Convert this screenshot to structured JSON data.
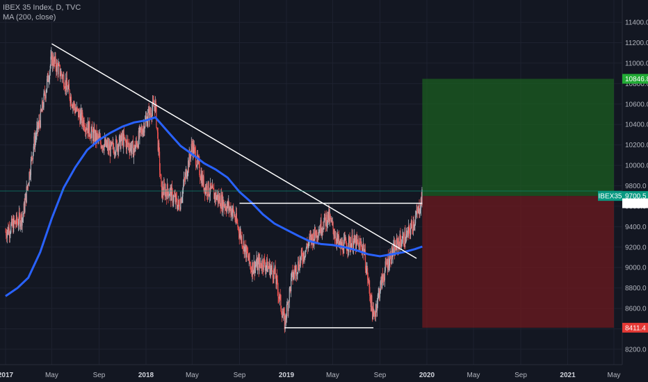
{
  "header": {
    "symbol_line": "IBEX 35 Index, D, TVC",
    "indicator_line": "MA (200, close)"
  },
  "colors": {
    "background": "#131722",
    "grid": "#1e2230",
    "up_candle": "#b2b5be",
    "down_candle": "#ef5350",
    "ma_line": "#2962ff",
    "trendline": "#ffffff",
    "profit_zone": "#1b5e20",
    "loss_zone": "#6d1a1f",
    "price_tag": "#089981",
    "target_tag": "#22ab35",
    "stop_tag": "#e53935",
    "axis_text": "#b2b5be"
  },
  "chart_data": {
    "type": "candlestick",
    "title": "IBEX 35 Index, D, TVC",
    "x_labels": [
      "2017",
      "May",
      "Sep",
      "2018",
      "May",
      "Sep",
      "2019",
      "May",
      "Sep",
      "2020",
      "May",
      "Sep",
      "2021",
      "May"
    ],
    "y_ticks": [
      "11400.0",
      "11200.0",
      "11000.0",
      "10800.0",
      "10600.0",
      "10400.0",
      "10200.0",
      "10000.0",
      "9800.0",
      "9600.0",
      "9400.0",
      "9200.0",
      "9000.0",
      "8800.0",
      "8600.0",
      "8400.0",
      "8200.0"
    ],
    "ylim": [
      8050,
      11550
    ],
    "price_path": [
      [
        "2017-01-01",
        9350
      ],
      [
        "2017-02-15",
        9500
      ],
      [
        "2017-03-15",
        10200
      ],
      [
        "2017-04-01",
        10450
      ],
      [
        "2017-05-01",
        11050
      ],
      [
        "2017-06-01",
        10850
      ],
      [
        "2017-07-01",
        10550
      ],
      [
        "2017-08-15",
        10300
      ],
      [
        "2017-10-01",
        10150
      ],
      [
        "2017-11-01",
        10250
      ],
      [
        "2017-12-01",
        10150
      ],
      [
        "2018-01-01",
        10450
      ],
      [
        "2018-01-25",
        10600
      ],
      [
        "2018-02-10",
        9750
      ],
      [
        "2018-03-01",
        9750
      ],
      [
        "2018-03-28",
        9600
      ],
      [
        "2018-05-01",
        10200
      ],
      [
        "2018-06-01",
        9800
      ],
      [
        "2018-07-01",
        9700
      ],
      [
        "2018-08-15",
        9550
      ],
      [
        "2018-09-01",
        9350
      ],
      [
        "2018-10-01",
        9000
      ],
      [
        "2018-11-01",
        9050
      ],
      [
        "2018-12-01",
        8950
      ],
      [
        "2018-12-27",
        8450
      ],
      [
        "2019-01-15",
        8900
      ],
      [
        "2019-03-01",
        9250
      ],
      [
        "2019-04-20",
        9500
      ],
      [
        "2019-05-20",
        9200
      ],
      [
        "2019-06-20",
        9250
      ],
      [
        "2019-07-20",
        9200
      ],
      [
        "2019-08-15",
        8500
      ],
      [
        "2019-09-01",
        8800
      ],
      [
        "2019-09-20",
        9050
      ],
      [
        "2019-10-20",
        9250
      ],
      [
        "2019-11-10",
        9300
      ],
      [
        "2019-12-10",
        9550
      ],
      [
        "2019-12-20",
        9700
      ]
    ],
    "ma_200": [
      [
        "2017-01-01",
        8720
      ],
      [
        "2017-02-01",
        8800
      ],
      [
        "2017-03-01",
        8900
      ],
      [
        "2017-04-01",
        9150
      ],
      [
        "2017-05-01",
        9480
      ],
      [
        "2017-06-01",
        9780
      ],
      [
        "2017-07-01",
        9980
      ],
      [
        "2017-08-01",
        10150
      ],
      [
        "2017-09-01",
        10250
      ],
      [
        "2017-10-01",
        10320
      ],
      [
        "2017-11-01",
        10380
      ],
      [
        "2017-12-01",
        10420
      ],
      [
        "2018-01-01",
        10440
      ],
      [
        "2018-01-25",
        10470
      ],
      [
        "2018-03-01",
        10320
      ],
      [
        "2018-04-01",
        10190
      ],
      [
        "2018-05-01",
        10110
      ],
      [
        "2018-06-01",
        10020
      ],
      [
        "2018-07-01",
        9960
      ],
      [
        "2018-08-01",
        9880
      ],
      [
        "2018-09-01",
        9740
      ],
      [
        "2018-10-01",
        9640
      ],
      [
        "2018-11-01",
        9520
      ],
      [
        "2018-12-01",
        9430
      ],
      [
        "2019-01-01",
        9370
      ],
      [
        "2019-02-01",
        9310
      ],
      [
        "2019-03-01",
        9260
      ],
      [
        "2019-04-01",
        9230
      ],
      [
        "2019-05-01",
        9220
      ],
      [
        "2019-06-01",
        9200
      ],
      [
        "2019-07-01",
        9170
      ],
      [
        "2019-08-01",
        9130
      ],
      [
        "2019-09-01",
        9110
      ],
      [
        "2019-10-01",
        9130
      ],
      [
        "2019-11-01",
        9150
      ],
      [
        "2019-12-01",
        9180
      ],
      [
        "2019-12-20",
        9205
      ]
    ],
    "trendline": [
      [
        "2017-05-01",
        11190
      ],
      [
        "2019-12-05",
        9090
      ]
    ],
    "resistance_line": [
      [
        "2018-09-01",
        9629
      ],
      [
        "2019-12-20",
        9629
      ]
    ],
    "support_line": [
      [
        "2018-12-27",
        8411
      ],
      [
        "2019-08-15",
        8411
      ]
    ],
    "position": {
      "start": "2019-12-20",
      "end": "2021-05-01",
      "target": 10846.8,
      "entry": 9700.5,
      "stop": 8411.4
    },
    "price_tags": [
      {
        "label": "",
        "value_text": "10846.8",
        "value": 10846.8,
        "role": "target"
      },
      {
        "label": "IBEX35",
        "value_text": "9700.5",
        "value": 9700.5,
        "role": "price"
      },
      {
        "label": "",
        "value_text": "9629.1",
        "value": 9629.1,
        "role": "level"
      },
      {
        "label": "",
        "value_text": "8411.4",
        "value": 8411.4,
        "role": "stop"
      }
    ]
  }
}
